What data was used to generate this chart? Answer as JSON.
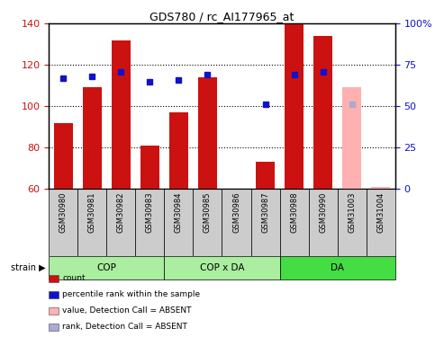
{
  "title": "GDS780 / rc_AI177965_at",
  "samples": [
    "GSM30980",
    "GSM30981",
    "GSM30982",
    "GSM30983",
    "GSM30984",
    "GSM30985",
    "GSM30986",
    "GSM30987",
    "GSM30988",
    "GSM30990",
    "GSM31003",
    "GSM31004"
  ],
  "counts": [
    92,
    109,
    132,
    81,
    97,
    114,
    60,
    73,
    140,
    134,
    109,
    61
  ],
  "count_absent": [
    false,
    false,
    false,
    false,
    false,
    false,
    false,
    false,
    false,
    false,
    true,
    true
  ],
  "percentile_ranks": [
    67,
    68,
    71,
    65,
    66,
    69,
    null,
    51,
    69,
    71,
    51,
    null
  ],
  "rank_absent": [
    false,
    false,
    false,
    false,
    false,
    false,
    false,
    false,
    false,
    false,
    true,
    true
  ],
  "ylim_left": [
    60,
    140
  ],
  "ylim_right": [
    0,
    100
  ],
  "yticks_left": [
    60,
    80,
    100,
    120,
    140
  ],
  "yticks_right": [
    0,
    25,
    50,
    75,
    100
  ],
  "bar_color": "#cc1111",
  "bar_absent_color": "#ffb0b0",
  "rank_color": "#1111cc",
  "rank_absent_color": "#aaaacc",
  "bg_plot": "#ffffff",
  "bg_label": "#cccccc",
  "bg_strain_cop": "#aaeea0",
  "bg_strain_da": "#44dd44",
  "legend": [
    {
      "label": "count",
      "color": "#cc1111"
    },
    {
      "label": "percentile rank within the sample",
      "color": "#1111cc"
    },
    {
      "label": "value, Detection Call = ABSENT",
      "color": "#ffb0b0"
    },
    {
      "label": "rank, Detection Call = ABSENT",
      "color": "#aaaadd"
    }
  ]
}
